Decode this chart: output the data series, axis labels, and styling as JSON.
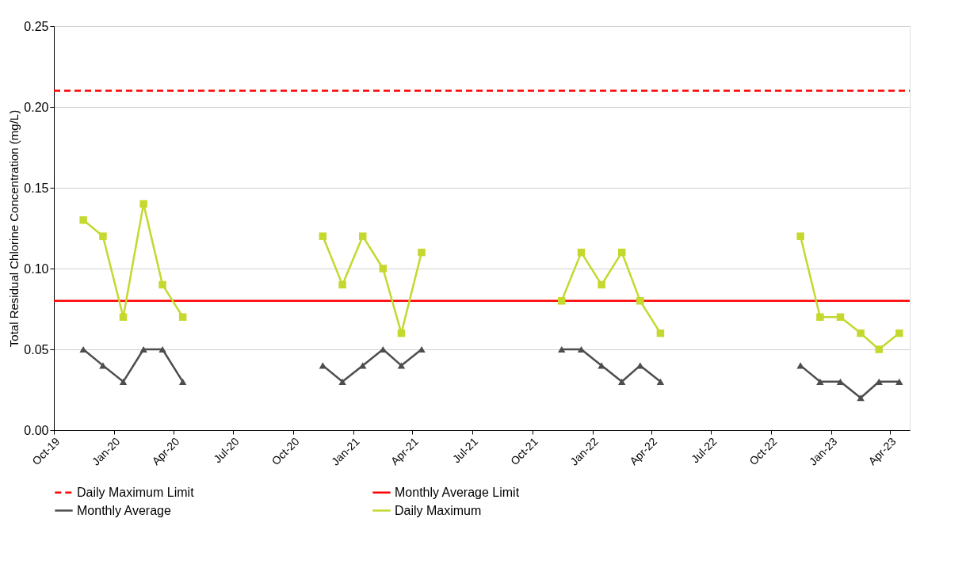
{
  "chart_data": {
    "type": "line",
    "ylabel": "Total Residual Chlorine Concentration (mg/L)",
    "xlim": [
      "2019-10-01",
      "2023-05-01"
    ],
    "xticks": [
      {
        "value": "2019-10-01",
        "label": "Oct-19"
      },
      {
        "value": "2020-01-01",
        "label": "Jan-20"
      },
      {
        "value": "2020-04-01",
        "label": "Apr-20"
      },
      {
        "value": "2020-07-01",
        "label": "Jul-20"
      },
      {
        "value": "2020-10-01",
        "label": "Oct-20"
      },
      {
        "value": "2021-01-01",
        "label": "Jan-21"
      },
      {
        "value": "2021-04-01",
        "label": "Apr-21"
      },
      {
        "value": "2021-07-01",
        "label": "Jul-21"
      },
      {
        "value": "2021-10-01",
        "label": "Oct-21"
      },
      {
        "value": "2022-01-01",
        "label": "Jan-22"
      },
      {
        "value": "2022-04-01",
        "label": "Apr-22"
      },
      {
        "value": "2022-07-01",
        "label": "Jul-22"
      },
      {
        "value": "2022-10-01",
        "label": "Oct-22"
      },
      {
        "value": "2023-01-01",
        "label": "Jan-23"
      },
      {
        "value": "2023-04-01",
        "label": "Apr-23"
      }
    ],
    "ylim": [
      0,
      0.25
    ],
    "yticks": [
      {
        "value": 0,
        "label": "0.00"
      },
      {
        "value": 0.05,
        "label": "0.05"
      },
      {
        "value": 0.1,
        "label": "0.10"
      },
      {
        "value": 0.15,
        "label": "0.15"
      },
      {
        "value": 0.2,
        "label": "0.20"
      },
      {
        "value": 0.25,
        "label": "0.25"
      }
    ],
    "grid": "y",
    "legend": "bottom",
    "series": [
      {
        "name": "Daily Maximum Limit",
        "color": "#ff0000",
        "line_style": "dashed",
        "marker": "none",
        "x": [
          "2019-10-01",
          "2023-05-01"
        ],
        "values": [
          0.21,
          0.21
        ]
      },
      {
        "name": "Monthly Average Limit",
        "color": "#ff0000",
        "line_style": "solid",
        "marker": "none",
        "x": [
          "2019-10-01",
          "2023-05-01"
        ],
        "values": [
          0.08,
          0.08
        ]
      },
      {
        "name": "Monthly Average",
        "color": "#4d4d4d",
        "line_style": "solid",
        "marker": "triangle",
        "x": [
          "2019-11-15",
          "2019-12-15",
          "2020-01-15",
          "2020-02-15",
          "2020-03-15",
          "2020-04-15",
          "2020-07-15",
          "2020-11-15",
          "2020-12-15",
          "2021-01-15",
          "2021-02-15",
          "2021-03-15",
          "2021-04-15",
          "2021-07-15",
          "2021-11-15",
          "2021-12-15",
          "2022-01-15",
          "2022-02-15",
          "2022-03-15",
          "2022-04-15",
          "2022-07-15",
          "2022-11-15",
          "2022-12-15",
          "2023-01-15",
          "2023-02-15",
          "2023-03-15",
          "2023-04-15"
        ],
        "values": [
          0.05,
          0.04,
          0.03,
          0.05,
          0.05,
          0.03,
          null,
          0.04,
          0.03,
          0.04,
          0.05,
          0.04,
          0.05,
          null,
          0.05,
          0.05,
          0.04,
          0.03,
          0.04,
          0.03,
          null,
          0.04,
          0.03,
          0.03,
          0.02,
          0.03,
          0.03
        ]
      },
      {
        "name": "Daily Maximum",
        "color": "#c4d82e",
        "line_style": "solid",
        "marker": "square",
        "x": [
          "2019-11-15",
          "2019-12-15",
          "2020-01-15",
          "2020-02-15",
          "2020-03-15",
          "2020-04-15",
          "2020-07-15",
          "2020-11-15",
          "2020-12-15",
          "2021-01-15",
          "2021-02-15",
          "2021-03-15",
          "2021-04-15",
          "2021-07-15",
          "2021-11-15",
          "2021-12-15",
          "2022-01-15",
          "2022-02-15",
          "2022-03-15",
          "2022-04-15",
          "2022-07-15",
          "2022-11-15",
          "2022-12-15",
          "2023-01-15",
          "2023-02-15",
          "2023-03-15",
          "2023-04-15"
        ],
        "values": [
          0.13,
          0.12,
          0.07,
          0.14,
          0.09,
          0.07,
          null,
          0.12,
          0.09,
          0.12,
          0.1,
          0.06,
          0.11,
          null,
          0.08,
          0.11,
          0.09,
          0.11,
          0.08,
          0.06,
          null,
          0.12,
          0.07,
          0.07,
          0.06,
          0.05,
          0.06
        ]
      }
    ]
  }
}
